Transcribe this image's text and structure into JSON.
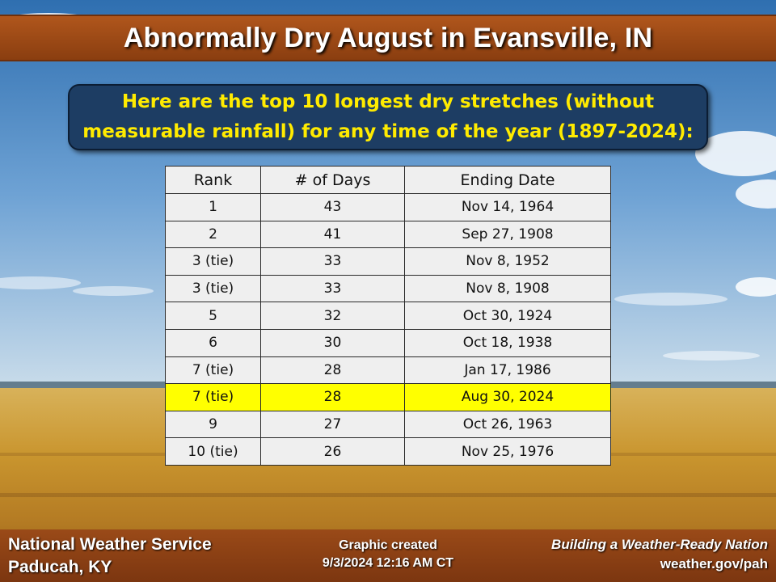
{
  "title": "Abnormally Dry August in Evansville, IN",
  "subtitle": {
    "line1": "Here are the top 10 longest dry stretches (without",
    "line2": "measurable rainfall) for any time of the year (1897-2024):"
  },
  "table": {
    "headers": [
      "Rank",
      "# of Days",
      "Ending Date"
    ],
    "rows": [
      {
        "rank": "1",
        "days": "43",
        "date": "Nov 14, 1964"
      },
      {
        "rank": "2",
        "days": "41",
        "date": "Sep 27, 1908"
      },
      {
        "rank": "3 (tie)",
        "days": "33",
        "date": "Nov 8, 1952"
      },
      {
        "rank": "3 (tie)",
        "days": "33",
        "date": "Nov 8, 1908"
      },
      {
        "rank": "5",
        "days": "32",
        "date": "Oct 30, 1924"
      },
      {
        "rank": "6",
        "days": "30",
        "date": "Oct 18, 1938"
      },
      {
        "rank": "7 (tie)",
        "days": "28",
        "date": "Jan 17, 1986"
      },
      {
        "rank": "7 (tie)",
        "days": "28",
        "date": "Aug 30, 2024",
        "highlight": true
      },
      {
        "rank": "9",
        "days": "27",
        "date": "Oct 26, 1963"
      },
      {
        "rank": "10 (tie)",
        "days": "26",
        "date": "Nov 25, 1976"
      }
    ],
    "highlight_color": "#ffff00"
  },
  "footer": {
    "org_line1": "National Weather Service",
    "org_line2": "Paducah, KY",
    "created_line1": "Graphic created",
    "created_line2": "9/3/2024 12:16 AM CT",
    "slogan": "Building a Weather-Ready Nation",
    "website": "weather.gov/pah"
  },
  "colors": {
    "brown_bar": "#9a4a18",
    "subtitle_box": "#1d3d63",
    "subtitle_text": "#ffeb00"
  }
}
